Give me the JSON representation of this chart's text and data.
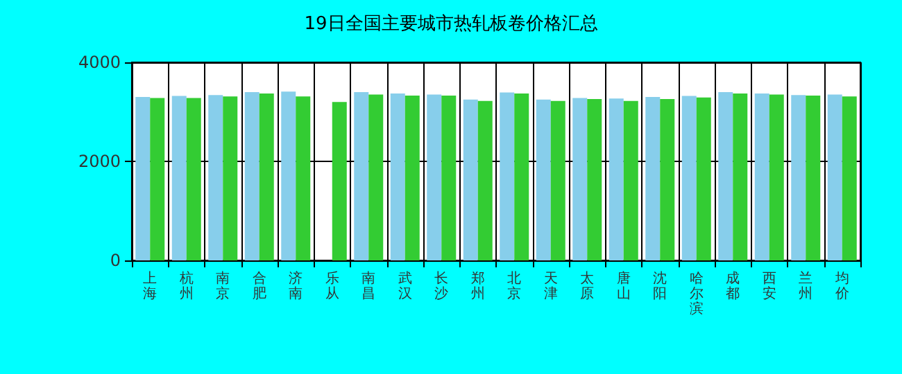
{
  "chart_data": {
    "type": "bar",
    "title": "19日全国主要城市热轧板卷价格汇总",
    "categories": [
      "上海",
      "杭州",
      "南京",
      "合肥",
      "济南",
      "乐从",
      "南昌",
      "武汉",
      "长沙",
      "郑州",
      "北京",
      "天津",
      "太原",
      "唐山",
      "沈阳",
      "哈尔滨",
      "成都",
      "西安",
      "兰州",
      "均价"
    ],
    "series": [
      {
        "color": "#87ceeb",
        "values": [
          3300,
          3320,
          3340,
          3400,
          3410,
          null,
          3400,
          3370,
          3350,
          3250,
          3390,
          3250,
          3280,
          3270,
          3300,
          3320,
          3400,
          3370,
          3340,
          3350
        ]
      },
      {
        "color": "#33cc33",
        "values": [
          3280,
          3280,
          3310,
          3370,
          3310,
          3200,
          3350,
          3330,
          3330,
          3220,
          3370,
          3220,
          3260,
          3220,
          3260,
          3290,
          3370,
          3350,
          3330,
          3310
        ]
      }
    ],
    "ylim": [
      0,
      4000
    ],
    "yticks": [
      0,
      2000,
      4000
    ],
    "grid": true
  }
}
